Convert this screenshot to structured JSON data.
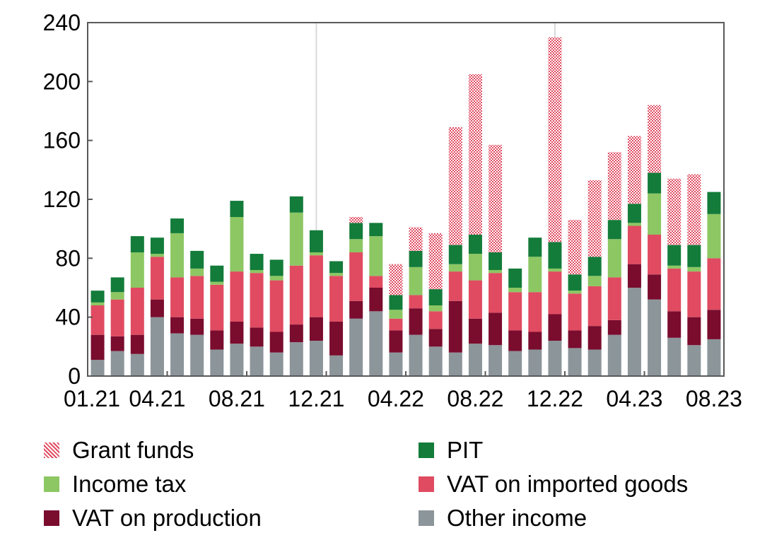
{
  "chart_data": {
    "type": "bar",
    "stacked": true,
    "categories": [
      "01.21",
      "02.21",
      "03.21",
      "04.21",
      "05.21",
      "06.21",
      "07.21",
      "08.21",
      "09.21",
      "10.21",
      "11.21",
      "12.21",
      "01.22",
      "02.22",
      "03.22",
      "04.22",
      "05.22",
      "06.22",
      "07.22",
      "08.22",
      "09.22",
      "10.22",
      "11.22",
      "12.22",
      "01.23",
      "02.23",
      "03.23",
      "04.23",
      "05.23",
      "06.23",
      "07.23",
      "08.23"
    ],
    "x_tick_labels": [
      "01.21",
      "04.21",
      "08.21",
      "12.21",
      "04.22",
      "08.22",
      "12.22",
      "04.23",
      "08.23"
    ],
    "y_ticks": [
      0,
      40,
      80,
      120,
      160,
      200,
      240
    ],
    "ylim": [
      0,
      240
    ],
    "grid": "vertical lines at 12.21 and 12.22",
    "legend_placement": "bottom",
    "title": "",
    "xlabel": "",
    "ylabel": "",
    "series": [
      {
        "name": "Other income",
        "color": "#8c959a",
        "pattern": "solid",
        "values": [
          11,
          17,
          15,
          40,
          29,
          28,
          18,
          22,
          20,
          16,
          23,
          24,
          14,
          39,
          44,
          16,
          28,
          20,
          16,
          22,
          21,
          17,
          18,
          24,
          19,
          18,
          28,
          60,
          52,
          26,
          21,
          25
        ]
      },
      {
        "name": "VAT on production",
        "color": "#7a0c2e",
        "pattern": "solid",
        "values": [
          17,
          10,
          13,
          12,
          11,
          11,
          13,
          15,
          13,
          14,
          12,
          16,
          23,
          12,
          16,
          15,
          18,
          12,
          35,
          17,
          22,
          14,
          12,
          18,
          12,
          16,
          10,
          16,
          17,
          18,
          19,
          20
        ]
      },
      {
        "name": "VAT on imported goods",
        "color": "#e04b61",
        "pattern": "solid",
        "values": [
          20,
          25,
          32,
          29,
          27,
          29,
          31,
          34,
          37,
          35,
          40,
          42,
          31,
          33,
          8,
          8,
          9,
          12,
          20,
          26,
          27,
          26,
          27,
          29,
          25,
          27,
          29,
          26,
          27,
          29,
          31,
          35
        ]
      },
      {
        "name": "Income tax",
        "color": "#8cc763",
        "pattern": "solid",
        "values": [
          2,
          5,
          24,
          2,
          30,
          5,
          2,
          37,
          2,
          3,
          36,
          2,
          2,
          9,
          27,
          6,
          19,
          4,
          5,
          18,
          2,
          3,
          24,
          2,
          2,
          7,
          26,
          2,
          28,
          2,
          3,
          30
        ]
      },
      {
        "name": "PIT",
        "color": "#137c3a",
        "pattern": "solid",
        "values": [
          8,
          10,
          11,
          11,
          10,
          12,
          11,
          11,
          11,
          11,
          11,
          15,
          8,
          11,
          9,
          10,
          11,
          11,
          13,
          13,
          12,
          13,
          13,
          18,
          11,
          13,
          13,
          13,
          14,
          14,
          15,
          15
        ]
      },
      {
        "name": "Grant funds",
        "color": "#e04b61",
        "pattern": "dotted",
        "values": [
          0,
          0,
          0,
          0,
          0,
          0,
          0,
          0,
          0,
          0,
          0,
          0,
          0,
          4,
          0,
          21,
          16,
          38,
          80,
          109,
          73,
          0,
          0,
          139,
          37,
          52,
          46,
          46,
          46,
          45,
          48,
          0
        ]
      }
    ]
  },
  "legend": {
    "items": [
      {
        "label": "Grant funds",
        "color": "#e04b61",
        "pattern": "dotted"
      },
      {
        "label": "PIT",
        "color": "#137c3a",
        "pattern": "solid"
      },
      {
        "label": "Income tax",
        "color": "#8cc763",
        "pattern": "solid"
      },
      {
        "label": "VAT on imported goods",
        "color": "#e04b61",
        "pattern": "solid"
      },
      {
        "label": "VAT on production",
        "color": "#7a0c2e",
        "pattern": "solid"
      },
      {
        "label": "Other income",
        "color": "#8c959a",
        "pattern": "solid"
      }
    ]
  }
}
